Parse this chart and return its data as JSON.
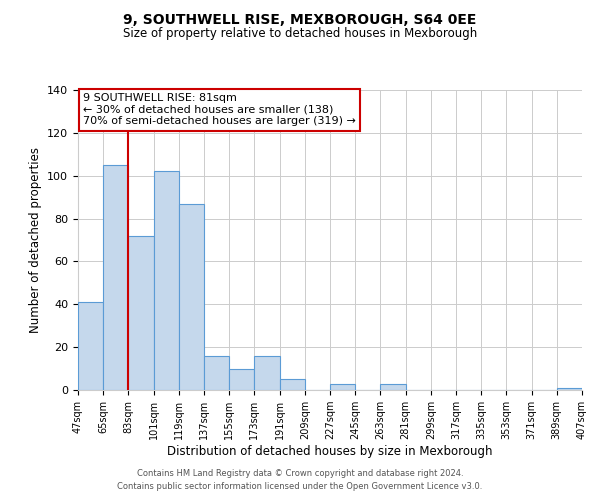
{
  "title": "9, SOUTHWELL RISE, MEXBOROUGH, S64 0EE",
  "subtitle": "Size of property relative to detached houses in Mexborough",
  "xlabel": "Distribution of detached houses by size in Mexborough",
  "ylabel": "Number of detached properties",
  "bar_color": "#c5d8ec",
  "bar_edge_color": "#5b9bd5",
  "grid_color": "#cccccc",
  "background_color": "#ffffff",
  "bins": [
    47,
    65,
    83,
    101,
    119,
    137,
    155,
    173,
    191,
    209,
    227,
    245,
    263,
    281,
    299,
    317,
    335,
    353,
    371,
    389,
    407
  ],
  "values": [
    41,
    105,
    72,
    102,
    87,
    16,
    10,
    16,
    5,
    0,
    3,
    0,
    3,
    0,
    0,
    0,
    0,
    0,
    0,
    1
  ],
  "tick_labels": [
    "47sqm",
    "65sqm",
    "83sqm",
    "101sqm",
    "119sqm",
    "137sqm",
    "155sqm",
    "173sqm",
    "191sqm",
    "209sqm",
    "227sqm",
    "245sqm",
    "263sqm",
    "281sqm",
    "299sqm",
    "317sqm",
    "335sqm",
    "353sqm",
    "371sqm",
    "389sqm",
    "407sqm"
  ],
  "ylim": [
    0,
    140
  ],
  "yticks": [
    0,
    20,
    40,
    60,
    80,
    100,
    120,
    140
  ],
  "property_line_x": 83,
  "annotation_title": "9 SOUTHWELL RISE: 81sqm",
  "annotation_line1": "← 30% of detached houses are smaller (138)",
  "annotation_line2": "70% of semi-detached houses are larger (319) →",
  "annotation_box_color": "#ffffff",
  "annotation_box_edge_color": "#cc0000",
  "vline_color": "#cc0000",
  "footer1": "Contains HM Land Registry data © Crown copyright and database right 2024.",
  "footer2": "Contains public sector information licensed under the Open Government Licence v3.0."
}
